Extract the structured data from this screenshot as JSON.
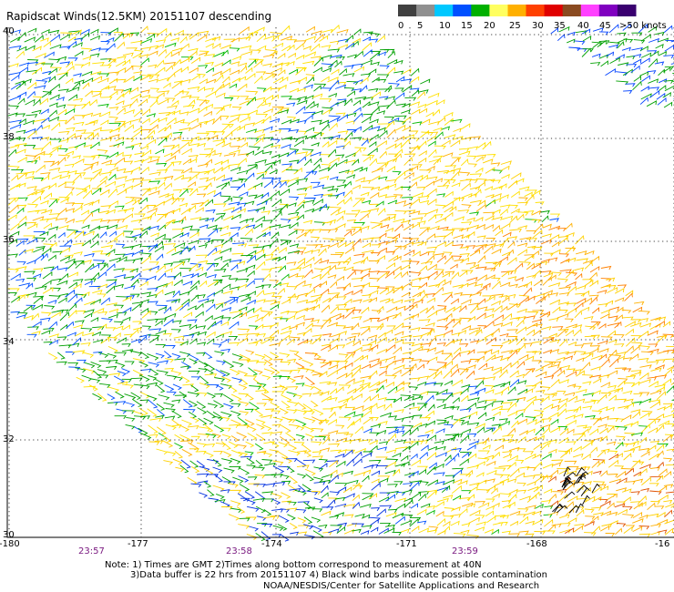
{
  "map": {
    "title": "Rapidscat Winds(12.5KM) 20151107 descending",
    "lon_labels": [
      "-180",
      "-177",
      "-174",
      "-171",
      "-168",
      "-16"
    ],
    "lat_labels": [
      "40",
      "38",
      "36",
      "34",
      "32",
      "30"
    ],
    "time_labels": [
      "23:57",
      "23:58",
      "23:59"
    ],
    "notes": [
      "Note: 1) Times are GMT 2)Times along bottom correspond to measurement at 40N",
      "3)Data buffer is 22 hrs from 20151107 4) Black wind barbs indicate possible contamination",
      "NOAA/NESDIS/Center for Satellite Applications and Research"
    ]
  },
  "legend": {
    "labels": [
      "0",
      "5",
      "10",
      "15",
      "20",
      "25",
      "30",
      "35",
      "40",
      "45",
      ">50 knots"
    ],
    "colors": [
      "#404040",
      "#909090",
      "#00c8ff",
      "#0050ff",
      "#00b000",
      "#ffff60",
      "#ffb000",
      "#ff4000",
      "#e00000",
      "#8a4a20",
      "#ff40ff",
      "#8000c0",
      "#3a0070"
    ]
  },
  "colors": {
    "time_label": "#7a1a80",
    "grid": "#000000"
  }
}
